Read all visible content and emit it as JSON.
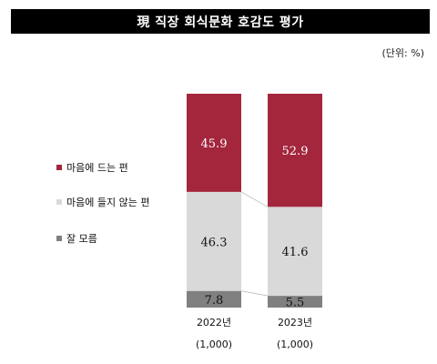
{
  "title": "現 직장 회식문화 호감도 평가",
  "unit": "(단위: %)",
  "chart_data": {
    "type": "bar",
    "stacked": true,
    "categories": [
      "2022년",
      "2023년"
    ],
    "category_sublabels": [
      "(1,000)",
      "(1,000)"
    ],
    "series": [
      {
        "name": "마음에 드는 편",
        "values": [
          45.9,
          52.9
        ],
        "color": "#a3263d",
        "label_color": "#ffffff"
      },
      {
        "name": "마음에 들지 않는 편",
        "values": [
          46.3,
          41.6
        ],
        "color": "#d9d9d9",
        "label_color": "#111111"
      },
      {
        "name": "잘 모름",
        "values": [
          7.8,
          5.5
        ],
        "color": "#808080",
        "label_color": "#111111"
      }
    ],
    "ylim": [
      0,
      100
    ],
    "legend_position": "left"
  }
}
